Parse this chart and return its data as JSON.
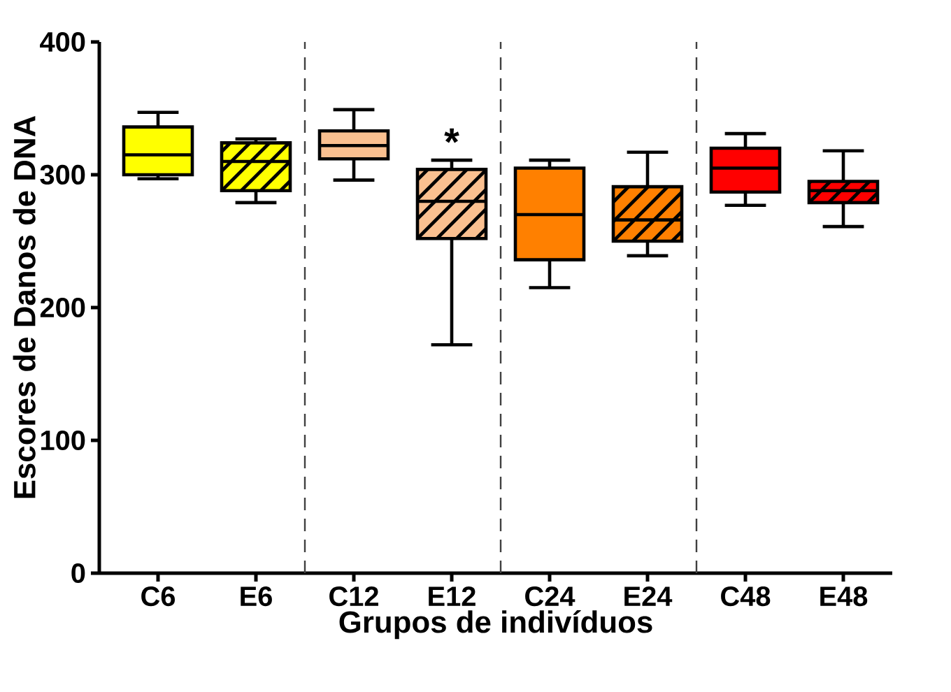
{
  "chart_data": {
    "type": "box",
    "xlabel": "Grupos de indivíduos",
    "ylabel": "Escores de Danos de DNA",
    "categories": [
      "C6",
      "E6",
      "C12",
      "E12",
      "C24",
      "E24",
      "C48",
      "E48"
    ],
    "ylim": [
      0,
      400
    ],
    "yticks": [
      0,
      100,
      200,
      300,
      400
    ],
    "series": [
      {
        "colors": [
          "#ffff00",
          null,
          "#fac090",
          null,
          "#ff8000",
          null,
          "#ff0000",
          null
        ],
        "boxes": [
          {
            "low": 297,
            "q1": 300,
            "median": 315,
            "q3": 336,
            "high": 347
          },
          null,
          {
            "low": 296,
            "q1": 312,
            "median": 322,
            "q3": 333,
            "high": 349
          },
          null,
          {
            "low": 215,
            "q1": 236,
            "median": 270,
            "q3": 305,
            "high": 311
          },
          null,
          {
            "low": 277,
            "q1": 287,
            "median": 305,
            "q3": 320,
            "high": 331
          },
          null
        ]
      },
      {
        "colors": [
          null,
          "#ffff00",
          null,
          "#fac090",
          null,
          "#ff8000",
          null,
          "#ff0000"
        ],
        "boxes": [
          null,
          {
            "low": 279,
            "q1": 288,
            "median": 310,
            "q3": 324,
            "high": 327
          },
          null,
          {
            "low": 172,
            "q1": 252,
            "median": 280,
            "q3": 304,
            "high": 311
          },
          null,
          {
            "low": 239,
            "q1": 250,
            "median": 266,
            "q3": 291,
            "high": 317
          },
          null,
          {
            "low": 261,
            "q1": 279,
            "median": 288,
            "q3": 295,
            "high": 318
          }
        ]
      }
    ],
    "annotations": [
      "*"
    ]
  }
}
